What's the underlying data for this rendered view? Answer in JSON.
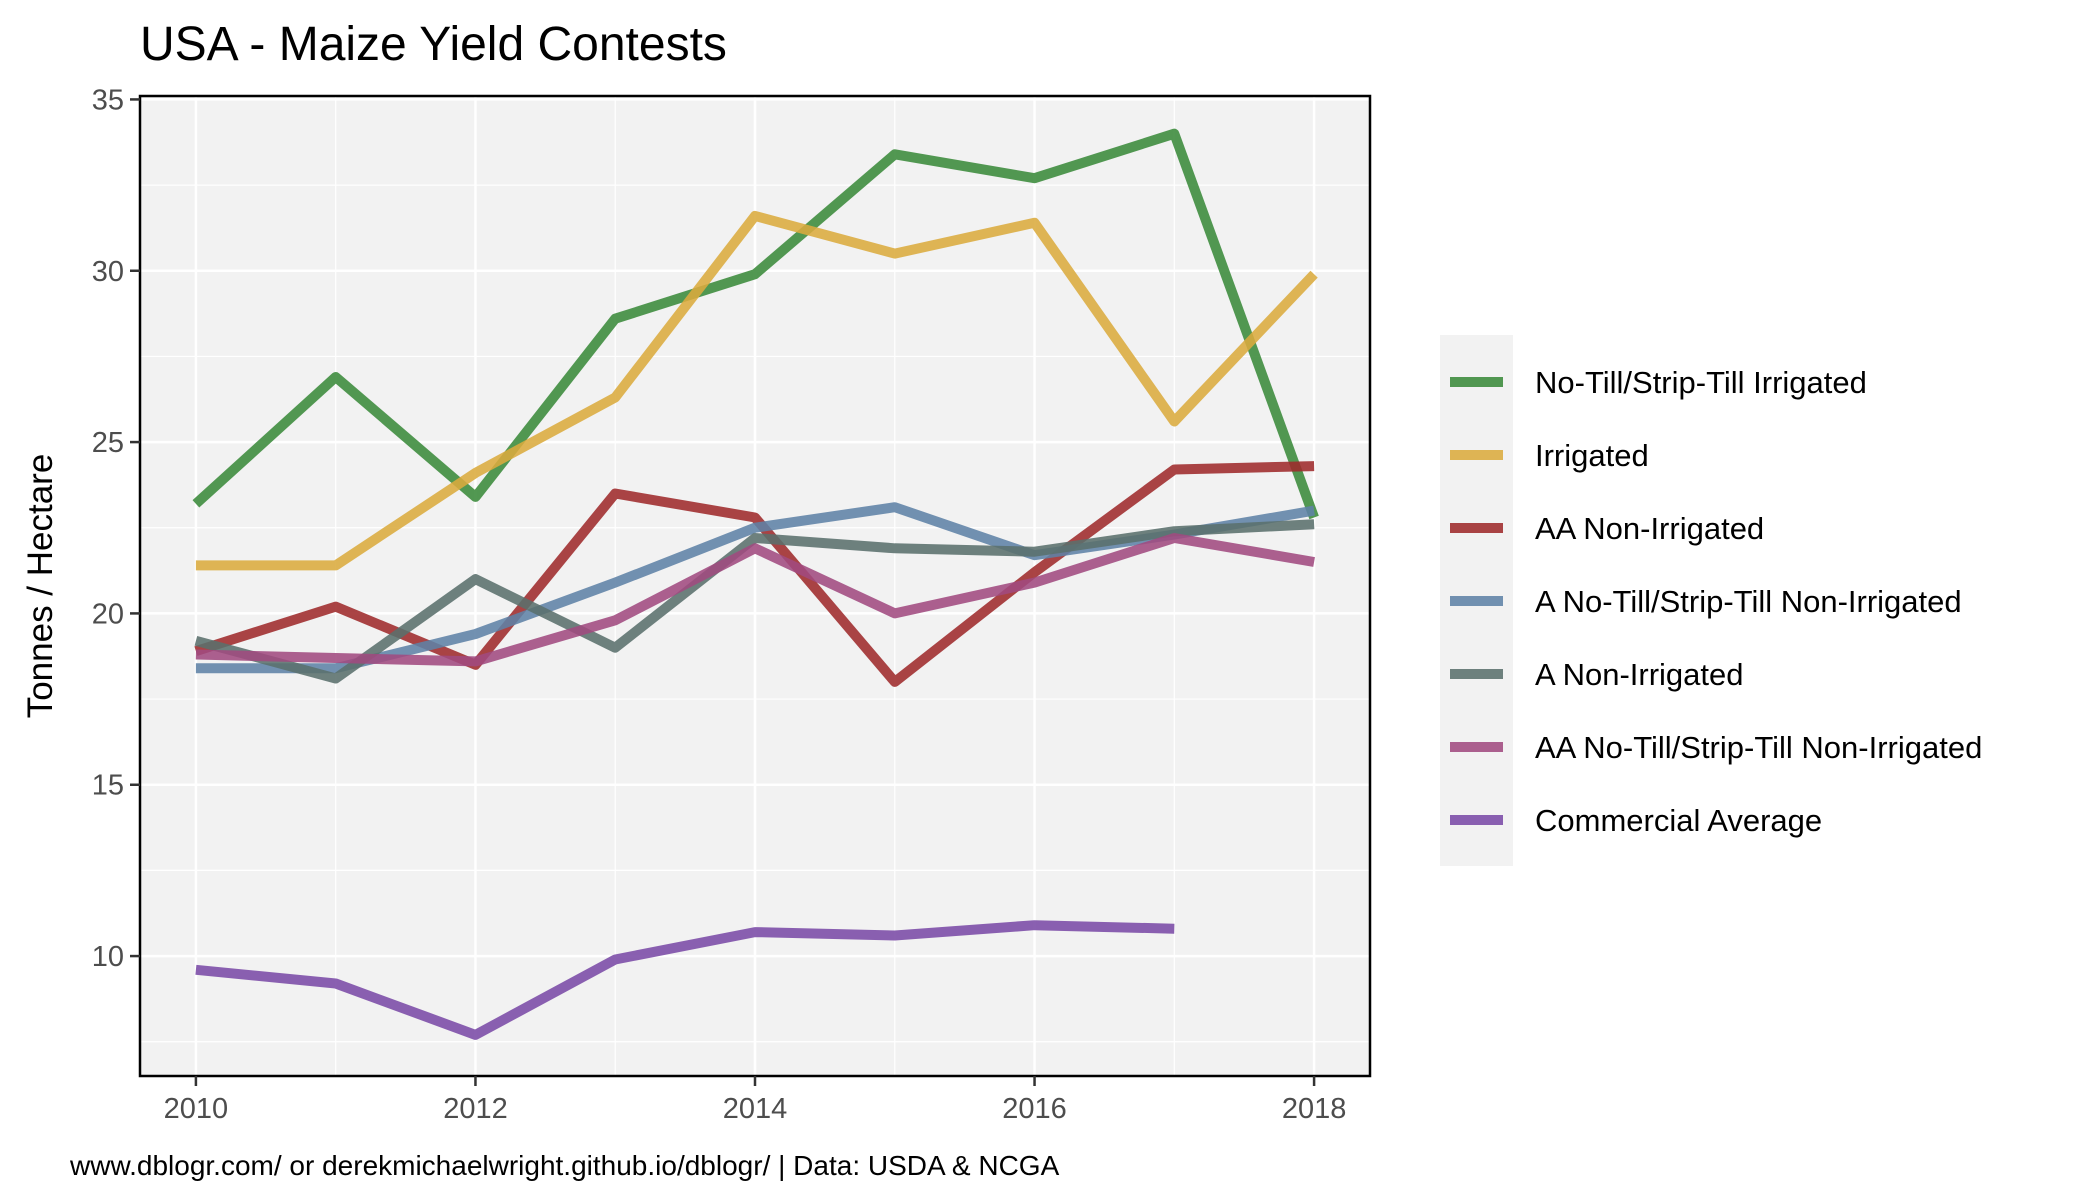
{
  "chart_data": {
    "type": "line",
    "title": "USA - Maize Yield Contests",
    "xlabel": "",
    "ylabel": "Tonnes / Hectare",
    "caption": "www.dblogr.com/ or derekmichaelwright.github.io/dblogr/ | Data: USDA & NCGA",
    "x": [
      2010,
      2011,
      2012,
      2013,
      2014,
      2015,
      2016,
      2017,
      2018
    ],
    "xlim": [
      2009.6,
      2018.4
    ],
    "ylim": [
      6.5,
      35.1
    ],
    "xticks": [
      2010,
      2012,
      2014,
      2016,
      2018
    ],
    "yticks": [
      10,
      15,
      20,
      25,
      30,
      35
    ],
    "grid": true,
    "legend_position": "right",
    "series": [
      {
        "name": "No-Till/Strip-Till Irrigated",
        "color": "#3a8a3a",
        "values": [
          23.2,
          26.9,
          23.4,
          28.6,
          29.9,
          33.4,
          32.7,
          34.0,
          22.8
        ]
      },
      {
        "name": "Irrigated",
        "color": "#dbab3d",
        "values": [
          21.4,
          21.4,
          24.1,
          26.3,
          31.6,
          30.5,
          31.4,
          25.6,
          29.9
        ]
      },
      {
        "name": "AA Non-Irrigated",
        "color": "#9e2a2b",
        "values": [
          18.9,
          20.2,
          18.5,
          23.5,
          22.8,
          18.0,
          21.2,
          24.2,
          24.3
        ]
      },
      {
        "name": "A No-Till/Strip-Till Non-Irrigated",
        "color": "#5f82a6",
        "values": [
          18.4,
          18.4,
          19.4,
          20.9,
          22.5,
          23.1,
          21.7,
          22.3,
          23.0
        ]
      },
      {
        "name": "A Non-Irrigated",
        "color": "#5a706c",
        "values": [
          19.2,
          18.1,
          21.0,
          19.0,
          22.2,
          21.9,
          21.8,
          22.4,
          22.6
        ]
      },
      {
        "name": "AA No-Till/Strip-Till Non-Irrigated",
        "color": "#a04a80",
        "values": [
          18.8,
          18.7,
          18.6,
          19.8,
          21.9,
          20.0,
          20.9,
          22.2,
          21.5
        ]
      },
      {
        "name": "Commercial Average",
        "color": "#7a4aa6",
        "values": [
          9.6,
          9.2,
          7.7,
          9.9,
          10.7,
          10.6,
          10.9,
          10.8,
          null
        ]
      }
    ]
  }
}
